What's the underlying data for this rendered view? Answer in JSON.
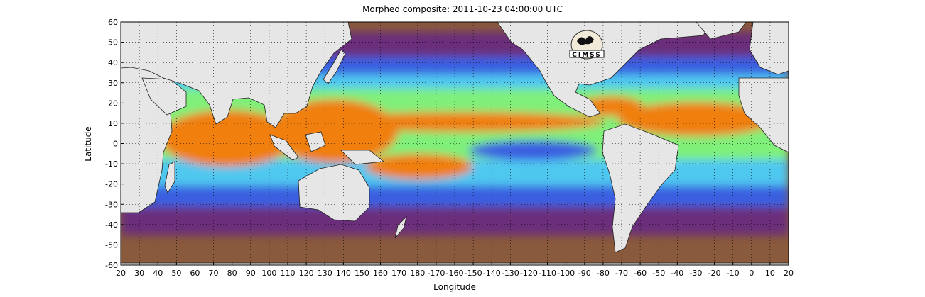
{
  "title": "Morphed composite: 2011-10-23 04:00:00 UTC",
  "axes": {
    "xlabel": "Longitude",
    "ylabel": "Latitude",
    "x_ticks": [
      "20",
      "30",
      "40",
      "50",
      "60",
      "70",
      "80",
      "90",
      "100",
      "110",
      "120",
      "130",
      "140",
      "150",
      "160",
      "170",
      "180",
      "-170",
      "-160",
      "-150",
      "-140",
      "-130",
      "-120",
      "-110",
      "-100",
      "-90",
      "-80",
      "-70",
      "-60",
      "-50",
      "-40",
      "-30",
      "-20",
      "-10",
      "0",
      "10",
      "20"
    ],
    "y_ticks": [
      "60",
      "50",
      "40",
      "30",
      "20",
      "10",
      "0",
      "-10",
      "-20",
      "-30",
      "-40",
      "-50",
      "-60"
    ]
  },
  "logo": {
    "text": "CIMSS"
  },
  "colors": {
    "land": "#e6e6e6",
    "dry": "#8a5a3c",
    "very_dry": "#6a2f7a",
    "low": "#3a5fe0",
    "mid": "#4fc8f0",
    "moist": "#7ff07a",
    "wet": "#f07f10"
  }
}
